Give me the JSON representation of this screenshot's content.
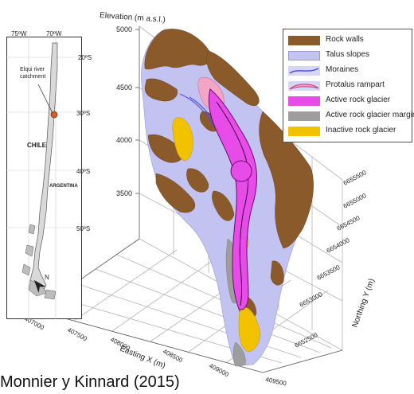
{
  "axes": {
    "elevation_label": "Elevation (m a.s.l.)",
    "elevation_ticks": [
      "5000",
      "4500",
      "4000",
      "3500"
    ],
    "easting_label": "Easting X (m)",
    "easting_ticks": [
      "407000",
      "407500",
      "408000",
      "408500",
      "409000",
      "409500"
    ],
    "northing_label": "Northing Y (m)",
    "northing_ticks": [
      "6655500",
      "6655000",
      "6654500",
      "6654000",
      "6653500",
      "6653000",
      "6652500"
    ]
  },
  "inset_map": {
    "lon_labels": [
      "75ºW",
      "70ºW"
    ],
    "lat_labels": [
      "20ºS",
      "30ºS",
      "40ºS",
      "50ºS"
    ],
    "catchment_label_line1": "Elqui river",
    "catchment_label_line2": "catchment",
    "country_chile": "CHILE",
    "country_argentina": "ARGENTINA",
    "north_label": "N"
  },
  "legend": {
    "items": [
      {
        "label": "Rock walls",
        "color": "#8b5a2b"
      },
      {
        "label": "Talus slopes",
        "color": "#c3c3f2"
      },
      {
        "label": "Moraines",
        "color": "#6060e0"
      },
      {
        "label": "Protalus rampart",
        "color": "#f2a5c5"
      },
      {
        "label": "Active rock glacier",
        "color": "#e84ce8"
      },
      {
        "label": "Active rock glacier margins",
        "color": "#9e9e9e"
      },
      {
        "label": "Inactive rock glacier",
        "color": "#f2c200"
      }
    ]
  },
  "caption": "Monnier y Kinnard (2015)"
}
